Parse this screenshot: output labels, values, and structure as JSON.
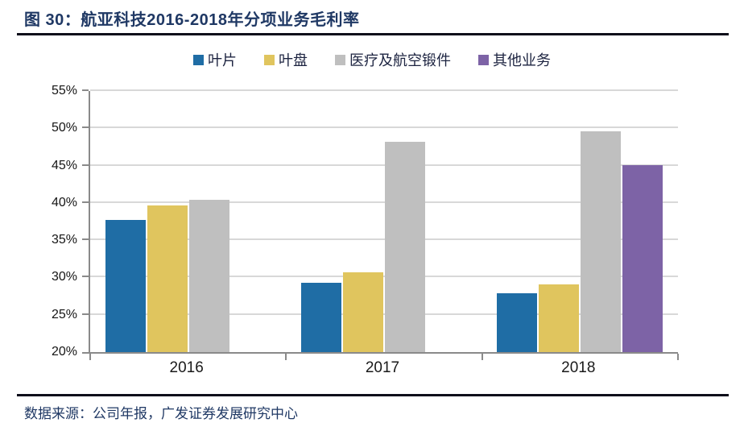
{
  "figure": {
    "title": "图 30：航亚科技2016-2018年分项业务毛利率",
    "source_note": "数据来源：公司年报，广发证券发展研究中心"
  },
  "chart_data": {
    "type": "bar",
    "title": "航亚科技2016-2018年分项业务毛利率",
    "categories": [
      "2016",
      "2017",
      "2018"
    ],
    "series": [
      {
        "name": "叶片",
        "color": "#1F6DA5",
        "values": [
          37.7,
          29.3,
          27.9
        ]
      },
      {
        "name": "叶盘",
        "color": "#E0C55E",
        "values": [
          39.7,
          30.7,
          29.1
        ]
      },
      {
        "name": "医疗及航空锻件",
        "color": "#BFBFBF",
        "values": [
          40.4,
          48.2,
          49.6
        ]
      },
      {
        "name": "其他业务",
        "color": "#7D63A6",
        "values": [
          null,
          null,
          45.1
        ]
      }
    ],
    "xlabel": "",
    "ylabel": "",
    "ylim": [
      20,
      55
    ],
    "ytick_step": 5,
    "yticks": [
      "20%",
      "25%",
      "30%",
      "35%",
      "40%",
      "45%",
      "50%",
      "55%"
    ],
    "ytick_format": "percent",
    "grid": true,
    "legend_position": "top",
    "axis_color": "#8a8a8a",
    "gridline_color": "#d8d8d8"
  }
}
